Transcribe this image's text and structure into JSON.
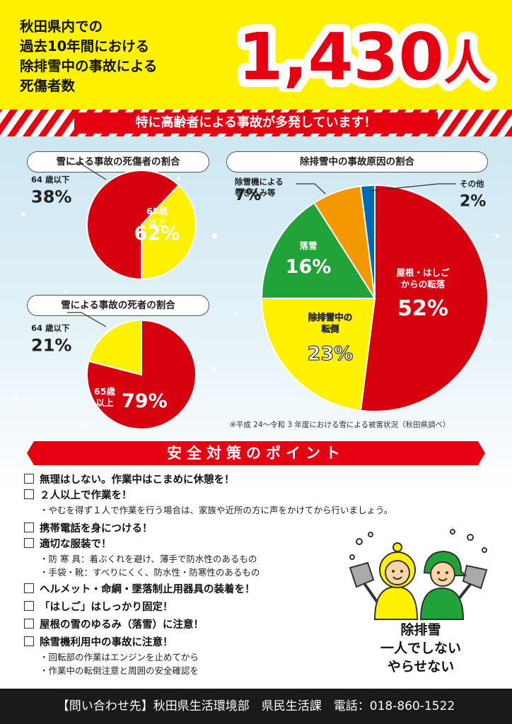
{
  "header": {
    "title_lines": [
      "秋田県内での",
      "過去10年間における",
      "除排雪中の事故による",
      "死傷者数"
    ],
    "count_number": "1,430",
    "count_unit": "人"
  },
  "headline": "特に高齢者による事故が多発しています！",
  "chart_data": [
    {
      "type": "pie",
      "title": "雪による事故の死傷者の割合",
      "slices": [
        {
          "label_lines": [
            "65歳",
            "以上"
          ],
          "value": 62,
          "display": "62%",
          "color": "#d7000f"
        },
        {
          "label_lines": [
            "64 歳以下"
          ],
          "value": 38,
          "display": "38%",
          "color": "#fff100"
        }
      ]
    },
    {
      "type": "pie",
      "title": "雪による事故の死者の割合",
      "slices": [
        {
          "label_lines": [
            "65歳",
            "以上"
          ],
          "value": 79,
          "display": "79%",
          "color": "#d7000f"
        },
        {
          "label_lines": [
            "64 歳以下"
          ],
          "value": 21,
          "display": "21%",
          "color": "#fff100"
        }
      ]
    },
    {
      "type": "pie",
      "title": "除排雪中の事故原因の割合",
      "slices": [
        {
          "label_lines": [
            "屋根・はしご",
            "からの転落"
          ],
          "value": 52,
          "display": "52%",
          "color": "#d7000f"
        },
        {
          "label_lines": [
            "除排雪中の",
            "転倒"
          ],
          "value": 23,
          "display": "23%",
          "color": "#fff100"
        },
        {
          "label_lines": [
            "落雪"
          ],
          "value": 16,
          "display": "16%",
          "color": "#22a33a"
        },
        {
          "label_lines": [
            "除雪機による",
            "巻き込み等"
          ],
          "value": 7,
          "display": "7%",
          "color": "#f39800"
        },
        {
          "label_lines": [
            "その他"
          ],
          "value": 2,
          "display": "2%",
          "color": "#0068b7"
        }
      ]
    }
  ],
  "source_note": "※平成 24～令和 3 年度における雪による被害状況（秋田県調べ）",
  "safety": {
    "title": "安全対策のポイント",
    "items": [
      {
        "text": "無理はしない。作業中はこまめに休憩を！",
        "subs": []
      },
      {
        "text": "２人以上で作業を！",
        "subs": [
          "・やむを得ず１人で作業を行う場合は、家族や近所の方に声をかけてから行いましょう。"
        ]
      },
      {
        "text": "携帯電話を身につける！",
        "subs": []
      },
      {
        "text": "適切な服装で！",
        "subs": [
          "・防 寒 具：着ぶくれを避け、薄手で防水性のあるもの",
          "・手袋・靴：すべりにくく、防水性・防寒性のあるもの"
        ]
      },
      {
        "text": "ヘルメット・命綱・墜落制止用器具の装着を！",
        "subs": []
      },
      {
        "text": "「はしご」はしっかり固定！",
        "subs": []
      },
      {
        "text": "屋根の雪のゆるみ（落雪）に注意！",
        "subs": []
      },
      {
        "text": "除雪機利用中の事故に注意！",
        "subs": [
          "・回転部の作業はエンジンを止めてから",
          "・作業中の転倒注意と周囲の安全確認を"
        ]
      }
    ]
  },
  "slogan_lines": [
    "除排雪",
    "一人でしない",
    "やらせない"
  ],
  "footer": "【問い合わせ先】秋田県生活環境部　県民生活課　電話：018-860-1522",
  "colors": {
    "red": "#e60012",
    "yellow": "#fff100",
    "green": "#22a33a",
    "orange": "#f39800",
    "blue": "#0068b7"
  }
}
